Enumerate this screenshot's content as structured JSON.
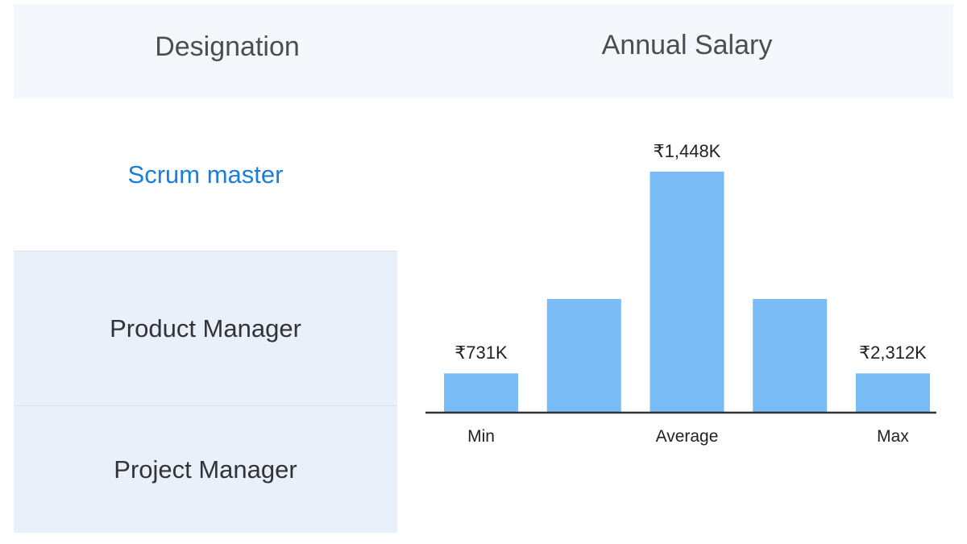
{
  "header": {
    "designation": "Designation",
    "annual_salary": "Annual Salary"
  },
  "designations": [
    {
      "label": "Scrum master",
      "active": true
    },
    {
      "label": "Product Manager",
      "active": false
    },
    {
      "label": "Project Manager",
      "active": false
    }
  ],
  "chart_data": {
    "type": "bar",
    "title": "Annual Salary",
    "categories": [
      "Min",
      "",
      "Average",
      "",
      "Max"
    ],
    "relative_levels": [
      0.16,
      0.47,
      1.0,
      0.47,
      0.16
    ],
    "data_labels": [
      "₹731K",
      "",
      "₹1,448K",
      "",
      "₹2,312K"
    ],
    "values_inr_thousands": {
      "min": 731,
      "average": 1448,
      "max": 2312
    },
    "bar_color": "#78bbf5",
    "axis_color": "#333333",
    "grid": false,
    "legend": "none"
  },
  "colors": {
    "active_text": "#1a7fdc",
    "header_bg": "#f4f7fb",
    "row_bg": "#eaf0f9"
  }
}
